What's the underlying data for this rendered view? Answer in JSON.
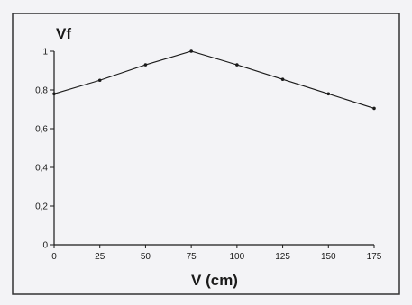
{
  "chart_data": {
    "type": "line",
    "title": "",
    "xlabel": "V (cm)",
    "ylabel": "Vf",
    "x": [
      0,
      25,
      50,
      75,
      100,
      125,
      150,
      175
    ],
    "series": [
      {
        "values": [
          0.78,
          0.85,
          0.93,
          1.0,
          0.93,
          0.855,
          0.78,
          0.705
        ]
      }
    ],
    "xlim": [
      0,
      175
    ],
    "ylim": [
      0,
      1
    ],
    "x_ticks": [
      "0",
      "25",
      "50",
      "75",
      "100",
      "125",
      "150",
      "175"
    ],
    "y_ticks": [
      "0",
      "0,2",
      "0,4",
      "0,6",
      "0,8",
      "1"
    ],
    "y_tick_values": [
      0,
      0.2,
      0.4,
      0.6,
      0.8,
      1
    ],
    "grid": false,
    "legend": "none",
    "colors": {
      "line": "#1a1a1a",
      "background": "#f3f3f6",
      "frame": "#333333"
    }
  }
}
